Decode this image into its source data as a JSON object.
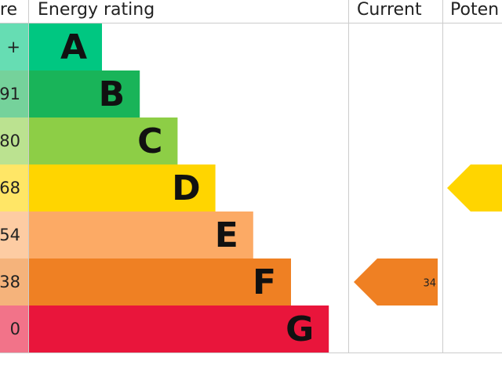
{
  "header": {
    "score": "re",
    "rating": "Energy rating",
    "current": "Current",
    "potential": "Poten"
  },
  "bands": [
    {
      "score": "+",
      "letter": "A",
      "color": "#00c781",
      "tint": "#66ddb3"
    },
    {
      "score": "91",
      "letter": "B",
      "color": "#19b459",
      "tint": "#75d29b"
    },
    {
      "score": "80",
      "letter": "C",
      "color": "#8dce46",
      "tint": "#bbe290"
    },
    {
      "score": "68",
      "letter": "D",
      "color": "#ffd500",
      "tint": "#ffe666"
    },
    {
      "score": "54",
      "letter": "E",
      "color": "#fcaa65",
      "tint": "#fdcca3"
    },
    {
      "score": "38",
      "letter": "F",
      "color": "#ef8023",
      "tint": "#f5b37b"
    },
    {
      "score": "0",
      "letter": "G",
      "color": "#e9153b",
      "tint": "#f27389"
    }
  ],
  "current": {
    "value": 34
  }
}
